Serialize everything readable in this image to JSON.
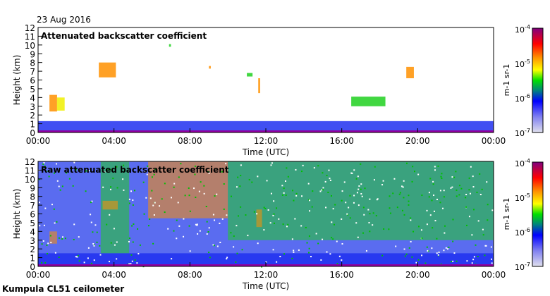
{
  "date": "23 Aug 2016",
  "footer": "Kumpula CL51 ceilometer",
  "chart_data": [
    {
      "type": "heatmap",
      "title": "Attenuated backscatter coefficient",
      "xlabel": "Time (UTC)",
      "ylabel": "Height (km)",
      "xlim": [
        0,
        24
      ],
      "ylim": [
        0,
        12
      ],
      "xticks": [
        "00:00",
        "04:00",
        "08:00",
        "12:00",
        "16:00",
        "20:00",
        "00:00"
      ],
      "yticks": [
        "0",
        "1",
        "2",
        "3",
        "4",
        "5",
        "6",
        "7",
        "8",
        "9",
        "10",
        "11",
        "12"
      ],
      "colorbar": {
        "label": "m-1 sr-1",
        "label_base": "m",
        "label_exp1": "-1",
        "label_mid": " sr",
        "label_exp2": "-1",
        "scale": "log",
        "range": [
          1e-07,
          0.0001
        ],
        "ticks": [
          {
            "b": "10",
            "e": "-4"
          },
          {
            "b": "10",
            "e": "-5"
          },
          {
            "b": "10",
            "e": "-6"
          },
          {
            "b": "10",
            "e": "-7"
          }
        ]
      },
      "features": [
        {
          "t0": 0.6,
          "t1": 1.0,
          "h0": 2.4,
          "h1": 4.3,
          "level": "orange"
        },
        {
          "t0": 1.0,
          "t1": 1.4,
          "h0": 2.5,
          "h1": 4.0,
          "level": "yellow"
        },
        {
          "t0": 3.2,
          "t1": 4.1,
          "h0": 6.3,
          "h1": 8.0,
          "level": "orange"
        },
        {
          "t0": 6.9,
          "t1": 7.0,
          "h0": 9.8,
          "h1": 10.1,
          "level": "green"
        },
        {
          "t0": 9.0,
          "t1": 9.1,
          "h0": 7.3,
          "h1": 7.6,
          "level": "orange"
        },
        {
          "t0": 11.0,
          "t1": 11.3,
          "h0": 6.4,
          "h1": 6.8,
          "level": "green"
        },
        {
          "t0": 11.6,
          "t1": 11.7,
          "h0": 4.5,
          "h1": 6.2,
          "level": "orange"
        },
        {
          "t0": 16.5,
          "t1": 18.3,
          "h0": 3.0,
          "h1": 4.1,
          "level": "green"
        },
        {
          "t0": 19.4,
          "t1": 19.8,
          "h0": 6.2,
          "h1": 7.5,
          "level": "orange"
        },
        {
          "t0": 0,
          "t1": 24,
          "h0": 0,
          "h1": 1.3,
          "level": "blue"
        }
      ]
    },
    {
      "type": "heatmap",
      "title": "Raw attenuated backscatter coefficient",
      "xlabel": "Time (UTC)",
      "ylabel": "Height (km)",
      "xlim": [
        0,
        24
      ],
      "ylim": [
        0,
        12
      ],
      "xticks": [
        "00:00",
        "04:00",
        "08:00",
        "12:00",
        "16:00",
        "20:00",
        "00:00"
      ],
      "yticks": [
        "0",
        "1",
        "2",
        "3",
        "4",
        "5",
        "6",
        "7",
        "8",
        "9",
        "10",
        "11",
        "12"
      ],
      "colorbar": {
        "label": "m-1 sr-1",
        "scale": "log",
        "range": [
          1e-07,
          0.0001
        ]
      },
      "features": [
        {
          "t0": 3.3,
          "t1": 4.8,
          "h0": 1.5,
          "h1": 12,
          "level": "green"
        },
        {
          "t0": 5.8,
          "t1": 10.0,
          "h0": 5.5,
          "h1": 12,
          "level": "orange"
        },
        {
          "t0": 10.0,
          "t1": 24,
          "h0": 3.0,
          "h1": 12,
          "level": "green"
        },
        {
          "t0": 3.4,
          "t1": 4.2,
          "h0": 6.5,
          "h1": 7.5,
          "level": "orange"
        },
        {
          "t0": 11.5,
          "t1": 11.8,
          "h0": 4.5,
          "h1": 6.5,
          "level": "orange"
        },
        {
          "t0": 0.6,
          "t1": 1.0,
          "h0": 2.6,
          "h1": 4.0,
          "level": "orange"
        },
        {
          "t0": 0,
          "t1": 24,
          "h0": 0,
          "h1": 1.5,
          "level": "blue"
        }
      ]
    }
  ]
}
